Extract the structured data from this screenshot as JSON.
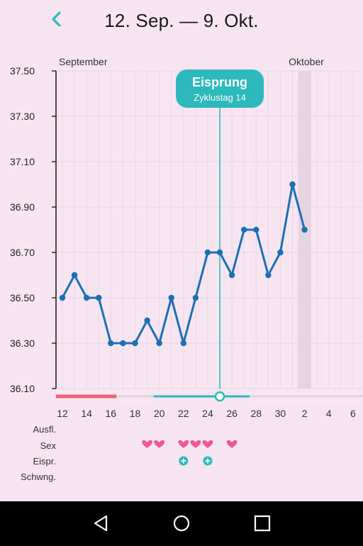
{
  "header": {
    "title": "12. Sep. — 9. Okt.",
    "back_icon": "chevron-left-icon",
    "accent_color": "#2cb9bc"
  },
  "chart_data": {
    "type": "line",
    "ylim": [
      36.1,
      37.5
    ],
    "y_ticks": [
      "36.10",
      "36.30",
      "36.50",
      "36.70",
      "36.90",
      "37.10",
      "37.30",
      "37.50"
    ],
    "month_labels": [
      "September",
      "Oktober"
    ],
    "x_tick_labels": [
      "12",
      "14",
      "16",
      "18",
      "20",
      "22",
      "24",
      "26",
      "28",
      "30",
      "2",
      "4",
      "6"
    ],
    "series": [
      {
        "color": "#1a6fb5",
        "x": [
          "12",
          "13",
          "14",
          "15",
          "16",
          "17",
          "18",
          "19",
          "20",
          "21",
          "22",
          "23",
          "24",
          "25",
          "26",
          "27",
          "28",
          "29",
          "30",
          "1",
          "2"
        ],
        "values": [
          36.5,
          36.6,
          36.5,
          36.5,
          36.3,
          36.3,
          36.3,
          36.4,
          36.3,
          36.5,
          36.3,
          36.5,
          36.7,
          36.7,
          36.6,
          36.8,
          36.8,
          36.6,
          36.7,
          37.0,
          36.8
        ]
      }
    ],
    "ovulation": {
      "label": "Eisprung",
      "sublabel": "Zyklustag 14",
      "date": "25",
      "color": "#2cb9bc"
    },
    "today": "2",
    "period_days": [
      "12",
      "13",
      "14",
      "15",
      "16"
    ],
    "fertile_window": [
      "20",
      "21",
      "22",
      "23",
      "24",
      "25",
      "26",
      "27"
    ],
    "period_color": "#f06277",
    "grid": true
  },
  "tracking": {
    "rows": [
      "Ausfl.",
      "Sex",
      "Eispr.",
      "Schwng."
    ],
    "sex_days": [
      "19",
      "20",
      "22",
      "23",
      "24",
      "26"
    ],
    "sex_icon": "heart-icon",
    "sex_color": "#ef5b8e",
    "ovulation_test_days": [
      "22",
      "24"
    ],
    "ovulation_test_icon": "plus-circle-icon",
    "ovulation_test_color": "#2cb9bc"
  },
  "navbar": {
    "back_icon": "triangle-back-icon",
    "home_icon": "circle-home-icon",
    "recents_icon": "square-recents-icon"
  }
}
